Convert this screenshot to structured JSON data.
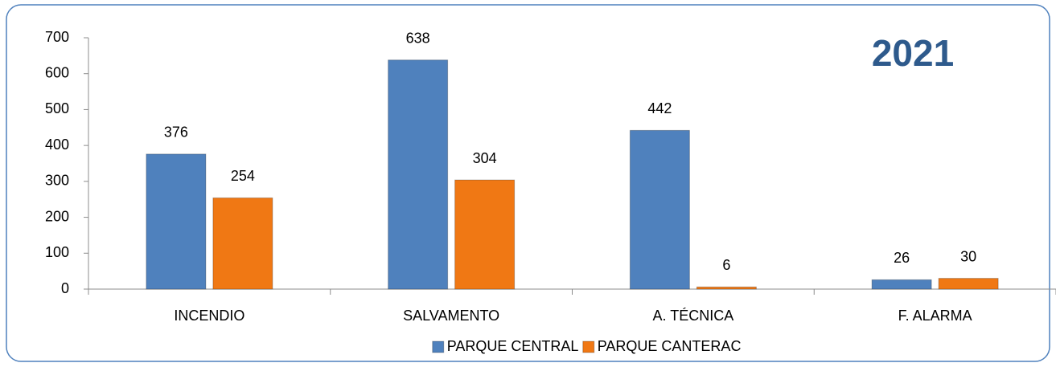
{
  "chart_data": {
    "type": "bar",
    "title": "2021",
    "categories": [
      "INCENDIO",
      "SALVAMENTO",
      "A. TÉCNICA",
      "F. ALARMA"
    ],
    "series": [
      {
        "name": "PARQUE CENTRAL",
        "color": "#4f81bd",
        "values": [
          376,
          638,
          442,
          26
        ]
      },
      {
        "name": "PARQUE CANTERAC",
        "color": "#f07814",
        "values": [
          254,
          304,
          6,
          30
        ]
      }
    ],
    "ylim": [
      0,
      700
    ],
    "yticks": [
      0,
      100,
      200,
      300,
      400,
      500,
      600,
      700
    ],
    "grid": false,
    "legend": "bottom"
  }
}
